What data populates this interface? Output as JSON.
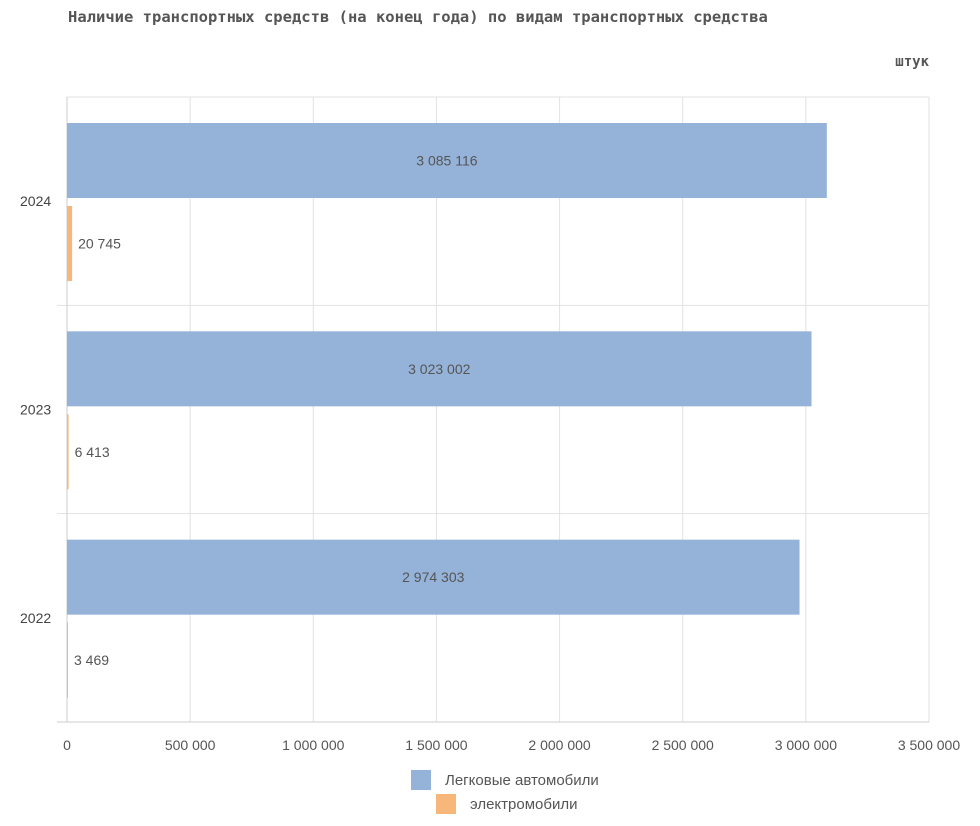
{
  "title": "Наличие транспортных средств (на конец года) по видам транспортных средства",
  "unit": "штук",
  "chart_data": {
    "type": "bar",
    "orientation": "horizontal",
    "categories": [
      "2024",
      "2023",
      "2022"
    ],
    "series": [
      {
        "name": "Легковые автомобили",
        "color": "#95b3d9",
        "values": [
          3085116,
          3023002,
          2974303
        ],
        "labels": [
          "3 085 116",
          "3 023 002",
          "2 974 303"
        ]
      },
      {
        "name": "электромобили",
        "color": "#f8b77a",
        "values": [
          20745,
          6413,
          3469
        ],
        "labels": [
          "20 745",
          "6 413",
          "3 469"
        ]
      }
    ],
    "xlim": [
      0,
      3500000
    ],
    "xticks": [
      0,
      500000,
      1000000,
      1500000,
      2000000,
      2500000,
      3000000,
      3500000
    ],
    "xtick_labels": [
      "0",
      "500 000",
      "1 000 000",
      "1 500 000",
      "2 000 000",
      "2 500 000",
      "3 000 000",
      "3 500 000"
    ],
    "grid": true,
    "legend_position": "bottom"
  }
}
